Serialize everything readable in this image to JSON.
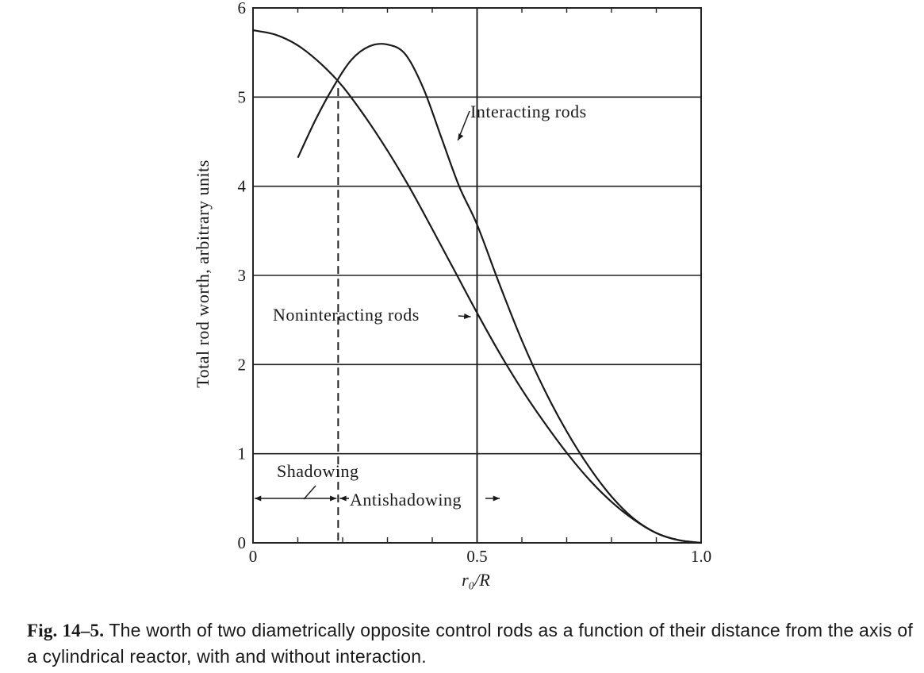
{
  "chart_data": {
    "type": "line",
    "xlabel": "r₀/R",
    "ylabel": "Total rod worth, arbitrary units",
    "xlim": [
      0,
      1.0
    ],
    "ylim": [
      0,
      6
    ],
    "x_tick_labels": [
      "0",
      "0.5",
      "1.0"
    ],
    "y_tick_labels": [
      "0",
      "1",
      "2",
      "3",
      "4",
      "5",
      "6"
    ],
    "grid": "horizontal",
    "series": [
      {
        "name": "Interacting rods",
        "x": [
          0.1,
          0.14,
          0.18,
          0.22,
          0.26,
          0.3,
          0.34,
          0.38,
          0.42,
          0.46,
          0.5,
          0.55,
          0.6,
          0.65,
          0.7,
          0.75,
          0.8,
          0.85,
          0.9,
          0.95,
          1.0
        ],
        "y": [
          4.32,
          4.75,
          5.12,
          5.42,
          5.57,
          5.59,
          5.48,
          5.1,
          4.55,
          4.0,
          3.57,
          2.9,
          2.27,
          1.72,
          1.25,
          0.85,
          0.52,
          0.27,
          0.11,
          0.03,
          0.0
        ]
      },
      {
        "name": "Noninteracting rods",
        "x": [
          0.0,
          0.05,
          0.1,
          0.15,
          0.2,
          0.25,
          0.3,
          0.35,
          0.4,
          0.45,
          0.5,
          0.55,
          0.6,
          0.65,
          0.7,
          0.75,
          0.8,
          0.85,
          0.9,
          0.95,
          1.0
        ],
        "y": [
          5.75,
          5.7,
          5.58,
          5.38,
          5.12,
          4.78,
          4.4,
          3.98,
          3.52,
          3.05,
          2.58,
          2.13,
          1.72,
          1.35,
          1.01,
          0.71,
          0.46,
          0.26,
          0.11,
          0.03,
          0.0
        ]
      }
    ],
    "vertical_lines": [
      {
        "x": 0.19,
        "style": "dashed"
      },
      {
        "x": 0.5,
        "style": "solid"
      }
    ],
    "annotations": [
      {
        "text": "Interacting rods",
        "target_x": 0.45,
        "target_y": 4.55
      },
      {
        "text": "Noninteracting rods",
        "target_x": 0.5,
        "target_y": 2.58
      },
      {
        "text": "Shadowing",
        "target_x": 0.12,
        "target_y": 0.5
      },
      {
        "text": "Antishadowing",
        "target_x": 0.19,
        "target_y": 0.5
      }
    ]
  },
  "caption": {
    "fig_label": "Fig. 14–5.",
    "text": "The worth of two diametrically opposite control rods as a function of their distance from the axis of a cylindrical reactor, with and without interaction."
  }
}
